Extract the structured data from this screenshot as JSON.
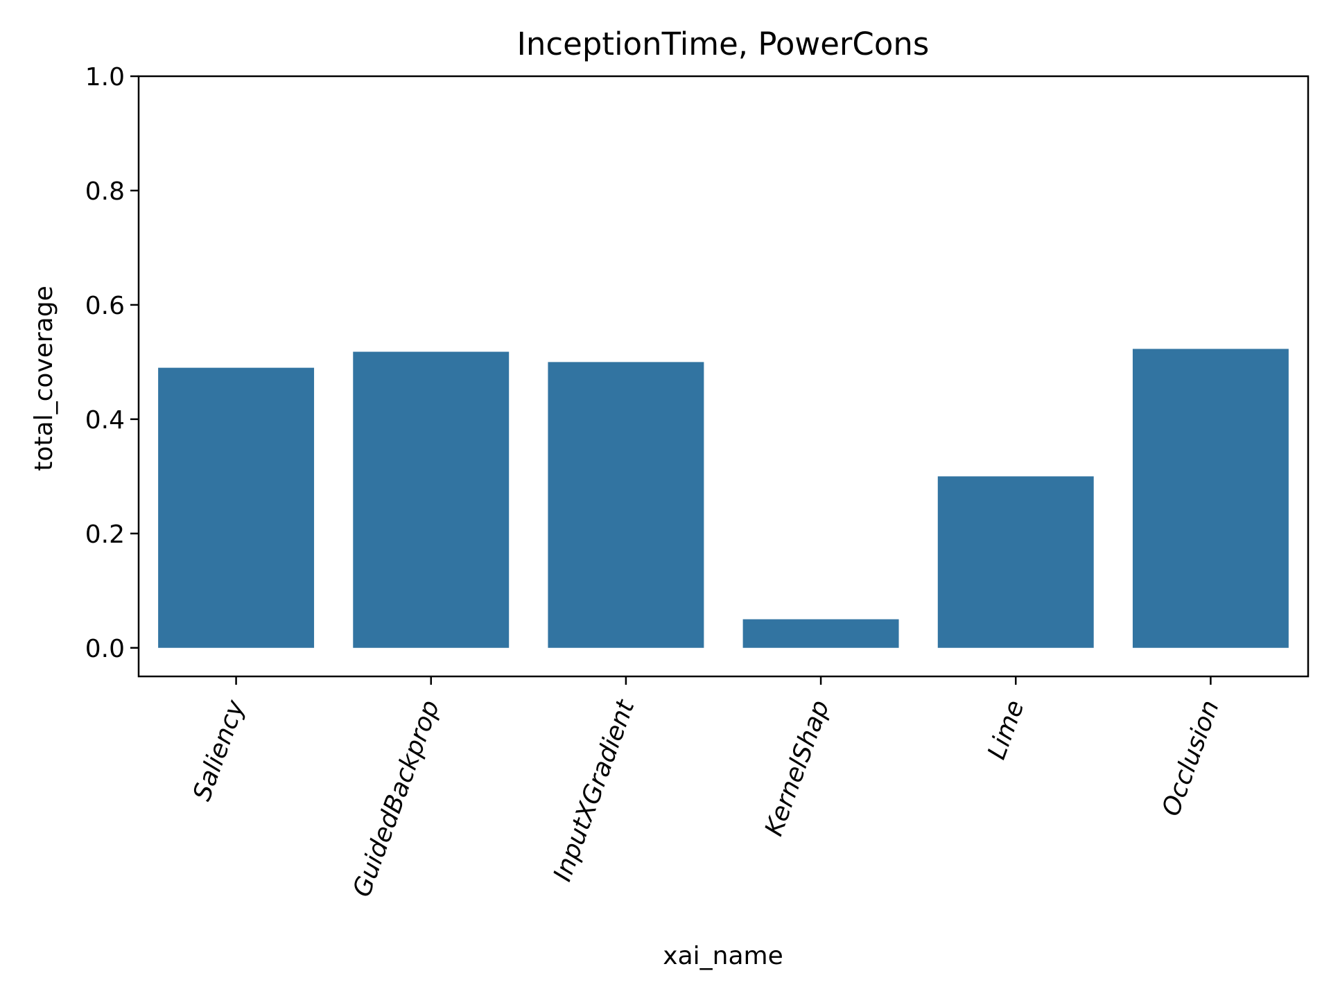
{
  "chart_data": {
    "type": "bar",
    "title": "InceptionTime, PowerCons",
    "xlabel": "xai_name",
    "ylabel": "total_coverage",
    "categories": [
      "Saliency",
      "GuidedBackprop",
      "InputXGradient",
      "KernelShap",
      "Lime",
      "Occlusion"
    ],
    "values": [
      0.49,
      0.518,
      0.5,
      0.05,
      0.3,
      0.523
    ],
    "ylim": [
      -0.05,
      1.0
    ],
    "yticks": [
      "0.0",
      "0.2",
      "0.4",
      "0.6",
      "0.8",
      "1.0"
    ],
    "ytick_values": [
      0.0,
      0.2,
      0.4,
      0.6,
      0.8,
      1.0
    ],
    "grid": false,
    "legend": "none",
    "bar_color": "#3274a1"
  }
}
